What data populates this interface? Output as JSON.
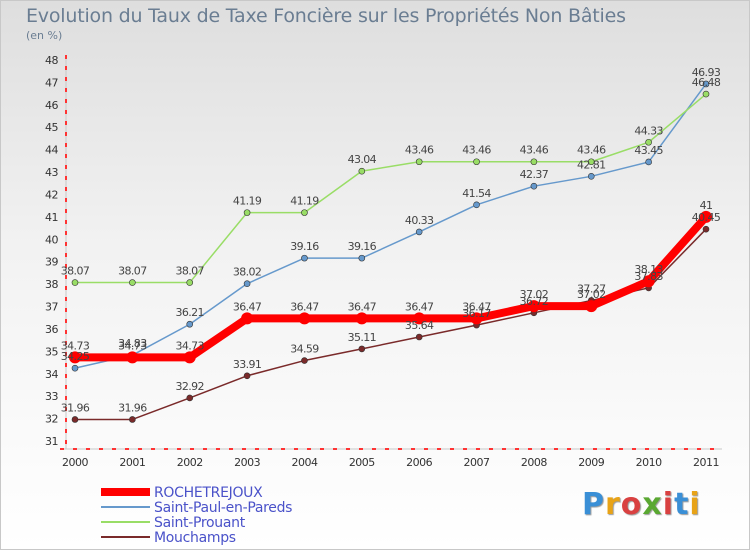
{
  "title": "Evolution du Taux de Taxe Foncière sur les Propriétés Non Bâties",
  "subtitle": "(en %)",
  "logo": {
    "letters": [
      "P",
      "r",
      "o",
      "x",
      "i",
      "t",
      "i"
    ],
    "colors": [
      "#3a8fd6",
      "#e8a317",
      "#d94141",
      "#5aa832",
      "#d94141",
      "#3a8fd6",
      "#e8a317"
    ]
  },
  "chart_data": {
    "type": "line",
    "x": [
      "2000",
      "2001",
      "2002",
      "2003",
      "2004",
      "2005",
      "2006",
      "2007",
      "2008",
      "2009",
      "2010",
      "2011"
    ],
    "ylim": [
      31,
      48
    ],
    "yticks": [
      31,
      32,
      33,
      34,
      35,
      36,
      37,
      38,
      39,
      40,
      41,
      42,
      43,
      44,
      45,
      46,
      47,
      48
    ],
    "grid": false,
    "legend_position": "bottom-left",
    "series": [
      {
        "name": "ROCHETREJOUX",
        "color": "#ff0000",
        "width": 8,
        "marker": 6,
        "values": [
          34.73,
          34.73,
          34.73,
          36.47,
          36.47,
          36.47,
          36.47,
          36.47,
          37.02,
          37.02,
          38.13,
          41
        ]
      },
      {
        "name": "Saint-Paul-en-Pareds",
        "color": "#6699cc",
        "width": 1.5,
        "marker": 3,
        "values": [
          34.25,
          34.83,
          36.21,
          38.02,
          39.16,
          39.16,
          40.33,
          41.54,
          42.37,
          42.81,
          43.45,
          46.93
        ]
      },
      {
        "name": "Saint-Prouant",
        "color": "#99dd66",
        "width": 1.5,
        "marker": 3,
        "values": [
          38.07,
          38.07,
          38.07,
          41.19,
          41.19,
          43.04,
          43.46,
          43.46,
          43.46,
          43.46,
          44.33,
          46.48
        ]
      },
      {
        "name": "Mouchamps",
        "color": "#7a2a2a",
        "width": 1.5,
        "marker": 3,
        "values": [
          31.96,
          31.96,
          32.92,
          33.91,
          34.59,
          35.11,
          35.64,
          36.17,
          36.72,
          37.27,
          37.83,
          40.45
        ]
      }
    ]
  }
}
